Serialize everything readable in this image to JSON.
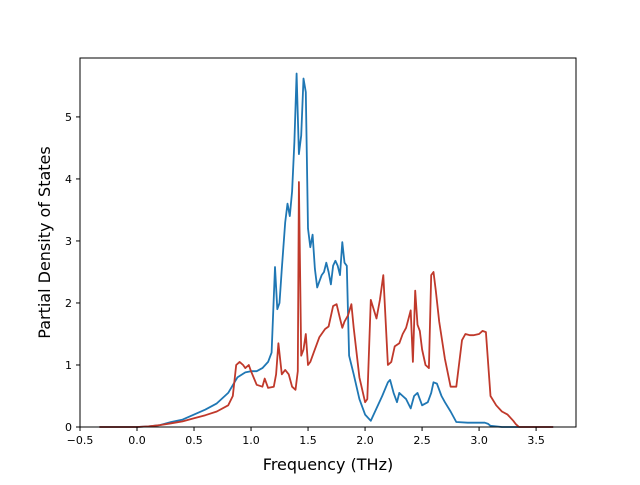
{
  "chart_data": {
    "type": "line",
    "title": "",
    "xlabel": "Frequency (THz)",
    "ylabel": "Partial Density of States",
    "xlim": [
      -0.5,
      3.85
    ],
    "ylim": [
      0,
      5.95
    ],
    "xticks": [
      -0.5,
      0.0,
      0.5,
      1.0,
      1.5,
      2.0,
      2.5,
      3.0,
      3.5
    ],
    "xtick_labels": [
      "−0.5",
      "0.0",
      "0.5",
      "1.0",
      "1.5",
      "2.0",
      "2.5",
      "3.0",
      "3.5"
    ],
    "yticks": [
      0,
      1,
      2,
      3,
      4,
      5
    ],
    "ytick_labels": [
      "0",
      "1",
      "2",
      "3",
      "4",
      "5"
    ],
    "grid": false,
    "legend": "none",
    "series": [
      {
        "color": "#1f77b4",
        "x": [
          -0.33,
          0.0,
          0.1,
          0.2,
          0.3,
          0.4,
          0.5,
          0.6,
          0.7,
          0.8,
          0.88,
          0.95,
          1.0,
          1.05,
          1.1,
          1.15,
          1.18,
          1.21,
          1.23,
          1.25,
          1.27,
          1.3,
          1.32,
          1.34,
          1.36,
          1.38,
          1.4,
          1.42,
          1.44,
          1.46,
          1.48,
          1.5,
          1.52,
          1.54,
          1.56,
          1.58,
          1.6,
          1.62,
          1.64,
          1.66,
          1.68,
          1.7,
          1.72,
          1.74,
          1.76,
          1.78,
          1.8,
          1.82,
          1.84,
          1.86,
          1.88,
          1.9,
          1.95,
          2.0,
          2.05,
          2.1,
          2.15,
          2.2,
          2.22,
          2.25,
          2.28,
          2.3,
          2.33,
          2.36,
          2.4,
          2.43,
          2.46,
          2.5,
          2.55,
          2.58,
          2.6,
          2.63,
          2.67,
          2.7,
          2.75,
          2.8,
          2.9,
          3.0,
          3.05,
          3.08,
          3.1,
          3.2,
          3.3,
          3.65
        ],
        "y": [
          0.0,
          0.0,
          0.01,
          0.03,
          0.08,
          0.12,
          0.2,
          0.28,
          0.38,
          0.55,
          0.8,
          0.88,
          0.9,
          0.9,
          0.95,
          1.05,
          1.2,
          2.58,
          1.9,
          2.0,
          2.55,
          3.3,
          3.6,
          3.4,
          3.8,
          4.6,
          5.7,
          4.4,
          4.7,
          5.62,
          5.4,
          3.2,
          2.9,
          3.1,
          2.55,
          2.25,
          2.35,
          2.45,
          2.5,
          2.65,
          2.5,
          2.3,
          2.6,
          2.68,
          2.6,
          2.45,
          2.98,
          2.65,
          2.6,
          1.15,
          1.0,
          0.85,
          0.45,
          0.2,
          0.1,
          0.3,
          0.5,
          0.72,
          0.76,
          0.55,
          0.4,
          0.55,
          0.5,
          0.45,
          0.3,
          0.5,
          0.55,
          0.35,
          0.4,
          0.55,
          0.72,
          0.7,
          0.5,
          0.4,
          0.25,
          0.08,
          0.07,
          0.07,
          0.07,
          0.05,
          0.02,
          0.0,
          0.0,
          0.0
        ]
      },
      {
        "color": "#c0392b",
        "x": [
          -0.33,
          0.0,
          0.1,
          0.2,
          0.3,
          0.4,
          0.5,
          0.6,
          0.7,
          0.8,
          0.84,
          0.87,
          0.9,
          0.93,
          0.95,
          0.98,
          1.0,
          1.05,
          1.1,
          1.12,
          1.15,
          1.2,
          1.22,
          1.24,
          1.27,
          1.3,
          1.33,
          1.36,
          1.39,
          1.41,
          1.42,
          1.44,
          1.46,
          1.48,
          1.5,
          1.52,
          1.55,
          1.6,
          1.65,
          1.68,
          1.72,
          1.75,
          1.78,
          1.8,
          1.82,
          1.85,
          1.88,
          1.9,
          1.95,
          2.0,
          2.02,
          2.05,
          2.1,
          2.13,
          2.16,
          2.2,
          2.23,
          2.26,
          2.3,
          2.33,
          2.36,
          2.4,
          2.42,
          2.44,
          2.46,
          2.48,
          2.5,
          2.53,
          2.56,
          2.58,
          2.6,
          2.62,
          2.65,
          2.7,
          2.75,
          2.8,
          2.85,
          2.88,
          2.92,
          2.95,
          3.0,
          3.03,
          3.06,
          3.1,
          3.15,
          3.2,
          3.25,
          3.3,
          3.32,
          3.35,
          3.65
        ],
        "y": [
          0.0,
          0.0,
          0.01,
          0.03,
          0.06,
          0.09,
          0.14,
          0.19,
          0.25,
          0.35,
          0.5,
          1.0,
          1.05,
          1.0,
          0.95,
          1.0,
          0.9,
          0.68,
          0.65,
          0.78,
          0.63,
          0.65,
          0.85,
          1.35,
          0.85,
          0.92,
          0.85,
          0.65,
          0.6,
          0.9,
          3.95,
          1.15,
          1.25,
          1.5,
          1.0,
          1.05,
          1.2,
          1.45,
          1.58,
          1.62,
          1.95,
          1.98,
          1.75,
          1.6,
          1.7,
          1.8,
          1.98,
          1.6,
          0.8,
          0.4,
          0.45,
          2.05,
          1.75,
          2.05,
          2.45,
          1.0,
          1.05,
          1.3,
          1.35,
          1.5,
          1.6,
          1.88,
          1.05,
          2.2,
          1.65,
          1.55,
          1.25,
          1.0,
          0.95,
          2.45,
          2.5,
          2.2,
          1.7,
          1.1,
          0.65,
          0.65,
          1.4,
          1.5,
          1.48,
          1.48,
          1.5,
          1.55,
          1.53,
          0.5,
          0.35,
          0.25,
          0.2,
          0.1,
          0.05,
          0.0,
          0.0
        ]
      }
    ]
  }
}
